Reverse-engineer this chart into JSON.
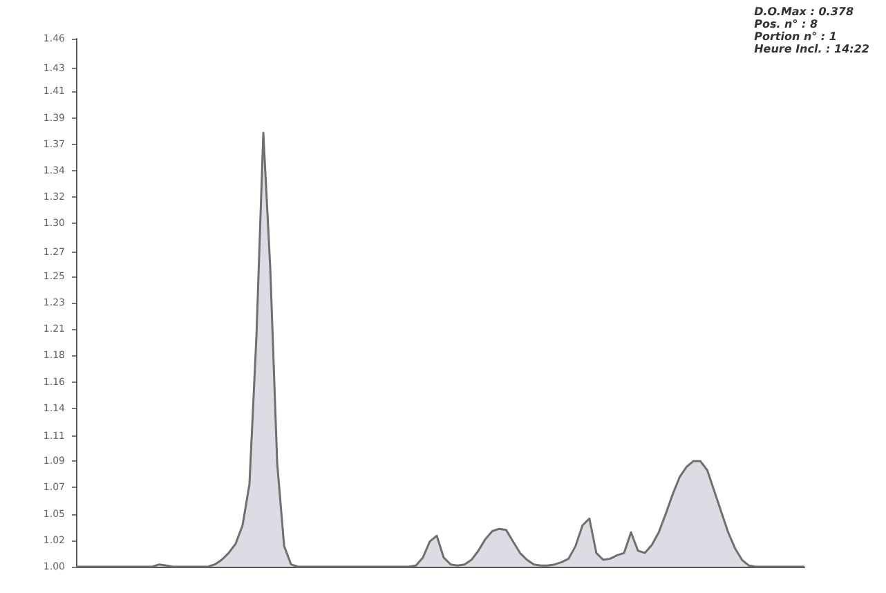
{
  "chart_data": {
    "type": "area",
    "color": "#6f6f6f",
    "categories": [
      null,
      null,
      null,
      null,
      null,
      null,
      null,
      null,
      null,
      null,
      null,
      null,
      null,
      null,
      null,
      null,
      null,
      null,
      null,
      null,
      null,
      null,
      null,
      null,
      null,
      null,
      null,
      null,
      null,
      null,
      null,
      null,
      null,
      null,
      null,
      null,
      null,
      null,
      null,
      null,
      null,
      null,
      null,
      null,
      null,
      null,
      null,
      null,
      null,
      null,
      null,
      null,
      null,
      null,
      null,
      null,
      null,
      null,
      null,
      null,
      null,
      null,
      null,
      null,
      null,
      null,
      null,
      null,
      null,
      null,
      null,
      null,
      null,
      null,
      null,
      null,
      null,
      null,
      null,
      null,
      null,
      null,
      null,
      null,
      null,
      null,
      null,
      null,
      null,
      null,
      null,
      null,
      null,
      null,
      null,
      null,
      null,
      null,
      null,
      null,
      null,
      null,
      null,
      null,
      null,
      null
    ],
    "values": [
      1.0,
      1.0,
      1.0,
      1.0,
      1.0,
      1.0,
      1.0,
      1.0,
      1.0,
      1.0,
      1.0,
      1.0,
      1.002,
      1.001,
      1.0,
      1.0,
      1.0,
      1.0,
      1.0,
      1.0,
      1.002,
      1.006,
      1.012,
      1.02,
      1.036,
      1.072,
      1.2,
      1.378,
      1.26,
      1.09,
      1.018,
      1.002,
      1.0,
      1.0,
      1.0,
      1.0,
      1.0,
      1.0,
      1.0,
      1.0,
      1.0,
      1.0,
      1.0,
      1.0,
      1.0,
      1.0,
      1.0,
      1.0,
      1.0,
      1.001,
      1.008,
      1.022,
      1.027,
      1.008,
      1.002,
      1.001,
      1.002,
      1.006,
      1.014,
      1.024,
      1.031,
      1.033,
      1.032,
      1.022,
      1.012,
      1.006,
      1.002,
      1.001,
      1.001,
      1.002,
      1.004,
      1.007,
      1.018,
      1.036,
      1.042,
      1.012,
      1.006,
      1.007,
      1.01,
      1.012,
      1.03,
      1.014,
      1.012,
      1.019,
      1.03,
      1.046,
      1.063,
      1.078,
      1.087,
      1.092,
      1.092,
      1.084,
      1.066,
      1.048,
      1.03,
      1.016,
      1.006,
      1.001,
      1.0,
      1.0,
      1.0,
      1.0,
      1.0,
      1.0,
      1.0,
      1.0
    ],
    "ylim": [
      1.0,
      1.46
    ],
    "yticks": [
      {
        "value": 1.0,
        "label": "1.00"
      },
      {
        "value": 1.023,
        "label": "1.02"
      },
      {
        "value": 1.046,
        "label": "1.05"
      },
      {
        "value": 1.069,
        "label": "1.07"
      },
      {
        "value": 1.092,
        "label": "1.09"
      },
      {
        "value": 1.114,
        "label": "1.11"
      },
      {
        "value": 1.138,
        "label": "1.14"
      },
      {
        "value": 1.161,
        "label": "1.16"
      },
      {
        "value": 1.184,
        "label": "1.18"
      },
      {
        "value": 1.207,
        "label": "1.21"
      },
      {
        "value": 1.23,
        "label": "1.23"
      },
      {
        "value": 1.253,
        "label": "1.25"
      },
      {
        "value": 1.274,
        "label": "1.27"
      },
      {
        "value": 1.299,
        "label": "1.30"
      },
      {
        "value": 1.322,
        "label": "1.32"
      },
      {
        "value": 1.345,
        "label": "1.34"
      },
      {
        "value": 1.368,
        "label": "1.37"
      },
      {
        "value": 1.391,
        "label": "1.39"
      },
      {
        "value": 1.414,
        "label": "1.41"
      },
      {
        "value": 1.434,
        "label": "1.43"
      },
      {
        "value": 1.46,
        "label": "1.46"
      }
    ],
    "tick_labels": "y",
    "grid": false,
    "line_style": "solid",
    "annotations": [
      "D.O.Max : 0.378",
      "Pos. n° : 8",
      "Portion n° : 1",
      "Heure Incl. : 14:22"
    ]
  }
}
